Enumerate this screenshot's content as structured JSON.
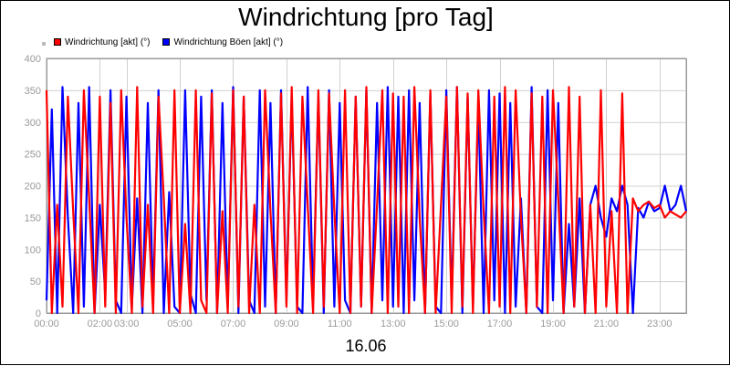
{
  "chart_data": {
    "type": "line",
    "title": "Windrichtung [pro Tag]",
    "xlabel": "16.06",
    "ylabel": "",
    "ylim": [
      0,
      400
    ],
    "yticks": [
      "0",
      "50",
      "100",
      "150",
      "200",
      "250",
      "300",
      "350",
      "400"
    ],
    "xlim": [
      0,
      24
    ],
    "xticks": [
      {
        "label": "00:00",
        "x": 0
      },
      {
        "label": "02:00",
        "x": 2
      },
      {
        "label": "03:00",
        "x": 3
      },
      {
        "label": "05:00",
        "x": 5
      },
      {
        "label": "07:00",
        "x": 7
      },
      {
        "label": "09:00",
        "x": 9
      },
      {
        "label": "11:00",
        "x": 11
      },
      {
        "label": "13:00",
        "x": 13
      },
      {
        "label": "15:00",
        "x": 15
      },
      {
        "label": "17:00",
        "x": 17
      },
      {
        "label": "19:00",
        "x": 19
      },
      {
        "label": "21:00",
        "x": 21
      },
      {
        "label": "23:00",
        "x": 23
      }
    ],
    "grid": true,
    "legend_position": "top-left",
    "series": [
      {
        "name": "Windrichtung [akt] (°)",
        "color": "#ff0000",
        "x": [
          0.0,
          0.2,
          0.4,
          0.6,
          0.8,
          1.0,
          1.2,
          1.4,
          1.6,
          1.8,
          2.0,
          2.2,
          2.4,
          2.6,
          2.8,
          3.0,
          3.2,
          3.4,
          3.6,
          3.8,
          4.0,
          4.2,
          4.4,
          4.6,
          4.8,
          5.0,
          5.2,
          5.4,
          5.6,
          5.8,
          6.0,
          6.2,
          6.4,
          6.6,
          6.8,
          7.0,
          7.2,
          7.4,
          7.6,
          7.8,
          8.0,
          8.2,
          8.4,
          8.6,
          8.8,
          9.0,
          9.2,
          9.4,
          9.6,
          9.8,
          10.0,
          10.2,
          10.4,
          10.6,
          10.8,
          11.0,
          11.2,
          11.4,
          11.6,
          11.8,
          12.0,
          12.2,
          12.4,
          12.6,
          12.8,
          13.0,
          13.2,
          13.4,
          13.6,
          13.8,
          14.0,
          14.2,
          14.4,
          14.6,
          14.8,
          15.0,
          15.2,
          15.4,
          15.6,
          15.8,
          16.0,
          16.2,
          16.4,
          16.6,
          16.8,
          17.0,
          17.2,
          17.4,
          17.6,
          17.8,
          18.0,
          18.2,
          18.4,
          18.6,
          18.8,
          19.0,
          19.2,
          19.4,
          19.6,
          19.8,
          20.0,
          20.2,
          20.4,
          20.6,
          20.8,
          21.0,
          21.2,
          21.4,
          21.6,
          21.8,
          22.0,
          22.2,
          22.4,
          22.6,
          22.8,
          23.0,
          23.2,
          23.4,
          23.6,
          23.8,
          24.0
        ],
        "values": [
          350,
          0,
          170,
          10,
          340,
          160,
          0,
          350,
          180,
          0,
          340,
          10,
          330,
          0,
          350,
          150,
          0,
          355,
          10,
          170,
          0,
          340,
          180,
          0,
          350,
          0,
          140,
          0,
          350,
          20,
          0,
          345,
          0,
          160,
          0,
          350,
          10,
          340,
          0,
          170,
          0,
          350,
          160,
          0,
          345,
          10,
          355,
          0,
          340,
          170,
          0,
          350,
          10,
          345,
          160,
          0,
          350,
          0,
          340,
          10,
          355,
          0,
          170,
          350,
          0,
          345,
          10,
          340,
          0,
          355,
          150,
          0,
          350,
          0,
          170,
          340,
          0,
          355,
          10,
          345,
          0,
          350,
          160,
          0,
          340,
          10,
          355,
          0,
          350,
          150,
          0,
          345,
          10,
          340,
          0,
          350,
          180,
          0,
          355,
          10,
          340,
          0,
          170,
          0,
          350,
          10,
          160,
          0,
          345,
          0,
          180,
          160,
          170,
          175,
          165,
          170,
          150,
          160,
          155,
          150,
          160
        ],
        "legend_label": "Windrichtung [akt] (°)"
      },
      {
        "name": "Windrichtung Böen [akt] (°)",
        "color": "#0000ff",
        "x": [
          0.0,
          0.2,
          0.4,
          0.6,
          0.8,
          1.0,
          1.2,
          1.4,
          1.6,
          1.8,
          2.0,
          2.2,
          2.4,
          2.6,
          2.8,
          3.0,
          3.2,
          3.4,
          3.6,
          3.8,
          4.0,
          4.2,
          4.4,
          4.6,
          4.8,
          5.0,
          5.2,
          5.4,
          5.6,
          5.8,
          6.0,
          6.2,
          6.4,
          6.6,
          6.8,
          7.0,
          7.2,
          7.4,
          7.6,
          7.8,
          8.0,
          8.2,
          8.4,
          8.6,
          8.8,
          9.0,
          9.2,
          9.4,
          9.6,
          9.8,
          10.0,
          10.2,
          10.4,
          10.6,
          10.8,
          11.0,
          11.2,
          11.4,
          11.6,
          11.8,
          12.0,
          12.2,
          12.4,
          12.6,
          12.8,
          13.0,
          13.2,
          13.4,
          13.6,
          13.8,
          14.0,
          14.2,
          14.4,
          14.6,
          14.8,
          15.0,
          15.2,
          15.4,
          15.6,
          15.8,
          16.0,
          16.2,
          16.4,
          16.6,
          16.8,
          17.0,
          17.2,
          17.4,
          17.6,
          17.8,
          18.0,
          18.2,
          18.4,
          18.6,
          18.8,
          19.0,
          19.2,
          19.4,
          19.6,
          19.8,
          20.0,
          20.2,
          20.4,
          20.6,
          20.8,
          21.0,
          21.2,
          21.4,
          21.6,
          21.8,
          22.0,
          22.2,
          22.4,
          22.6,
          22.8,
          23.0,
          23.2,
          23.4,
          23.6,
          23.8,
          24.0
        ],
        "values": [
          20,
          320,
          0,
          355,
          150,
          0,
          330,
          10,
          355,
          0,
          170,
          30,
          350,
          20,
          0,
          340,
          10,
          180,
          0,
          330,
          20,
          350,
          0,
          190,
          10,
          0,
          350,
          30,
          0,
          340,
          20,
          350,
          0,
          330,
          10,
          355,
          0,
          340,
          20,
          0,
          350,
          10,
          330,
          0,
          350,
          20,
          340,
          10,
          0,
          355,
          20,
          340,
          0,
          350,
          10,
          330,
          20,
          0,
          340,
          10,
          350,
          0,
          330,
          20,
          355,
          10,
          340,
          0,
          350,
          20,
          330,
          0,
          345,
          10,
          0,
          350,
          20,
          355,
          0,
          340,
          10,
          330,
          0,
          350,
          20,
          345,
          0,
          330,
          10,
          180,
          0,
          355,
          10,
          0,
          350,
          20,
          330,
          0,
          140,
          10,
          180,
          0,
          170,
          200,
          150,
          120,
          180,
          160,
          200,
          170,
          0,
          165,
          150,
          175,
          160,
          165,
          200,
          160,
          170,
          200,
          160
        ],
        "legend_label": "Windrichtung Böen [akt] (°)"
      }
    ]
  }
}
